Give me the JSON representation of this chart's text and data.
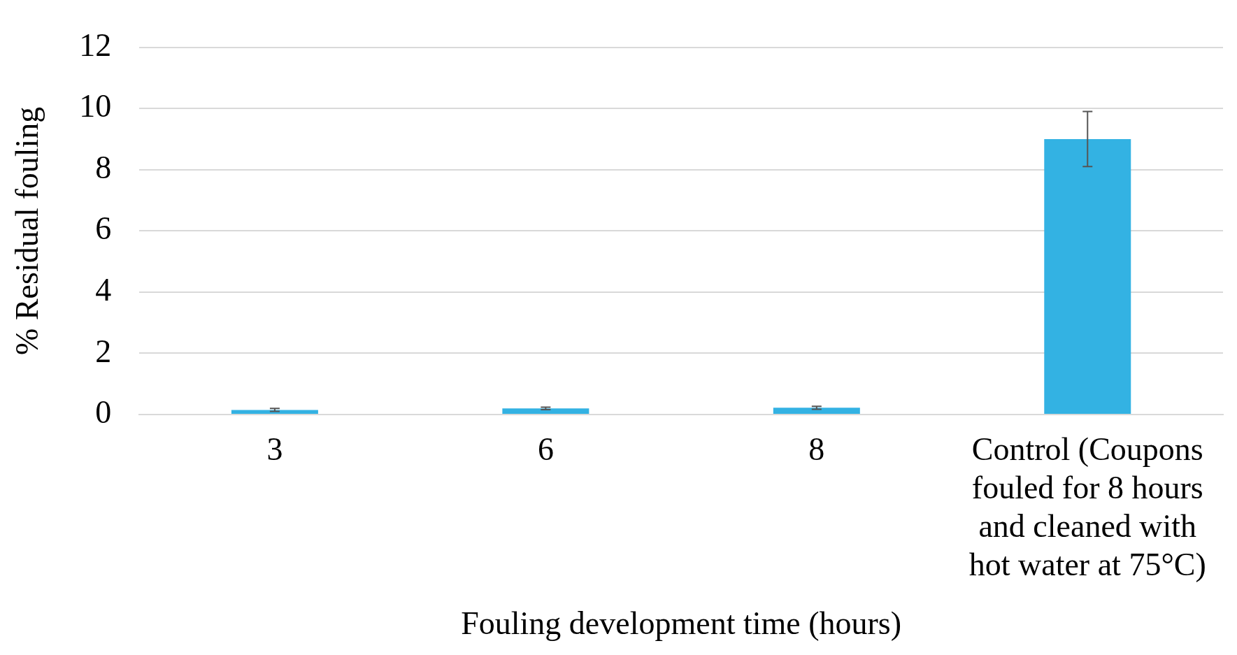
{
  "chart_data": {
    "type": "bar",
    "xlabel": "Fouling development time (hours)",
    "ylabel": "% Residual fouling",
    "categories": [
      "3",
      "6",
      "8",
      "Control (Coupons fouled for 8 hours and cleaned with hot water at 75°C)"
    ],
    "values": [
      0.15,
      0.2,
      0.22,
      9.0
    ],
    "errors": [
      0.05,
      0.04,
      0.05,
      0.9
    ],
    "color": "#33b2e3",
    "ylim": [
      0,
      12
    ],
    "yticks": [
      0,
      2,
      4,
      6,
      8,
      10,
      12
    ],
    "grid": "y",
    "legend": false
  }
}
